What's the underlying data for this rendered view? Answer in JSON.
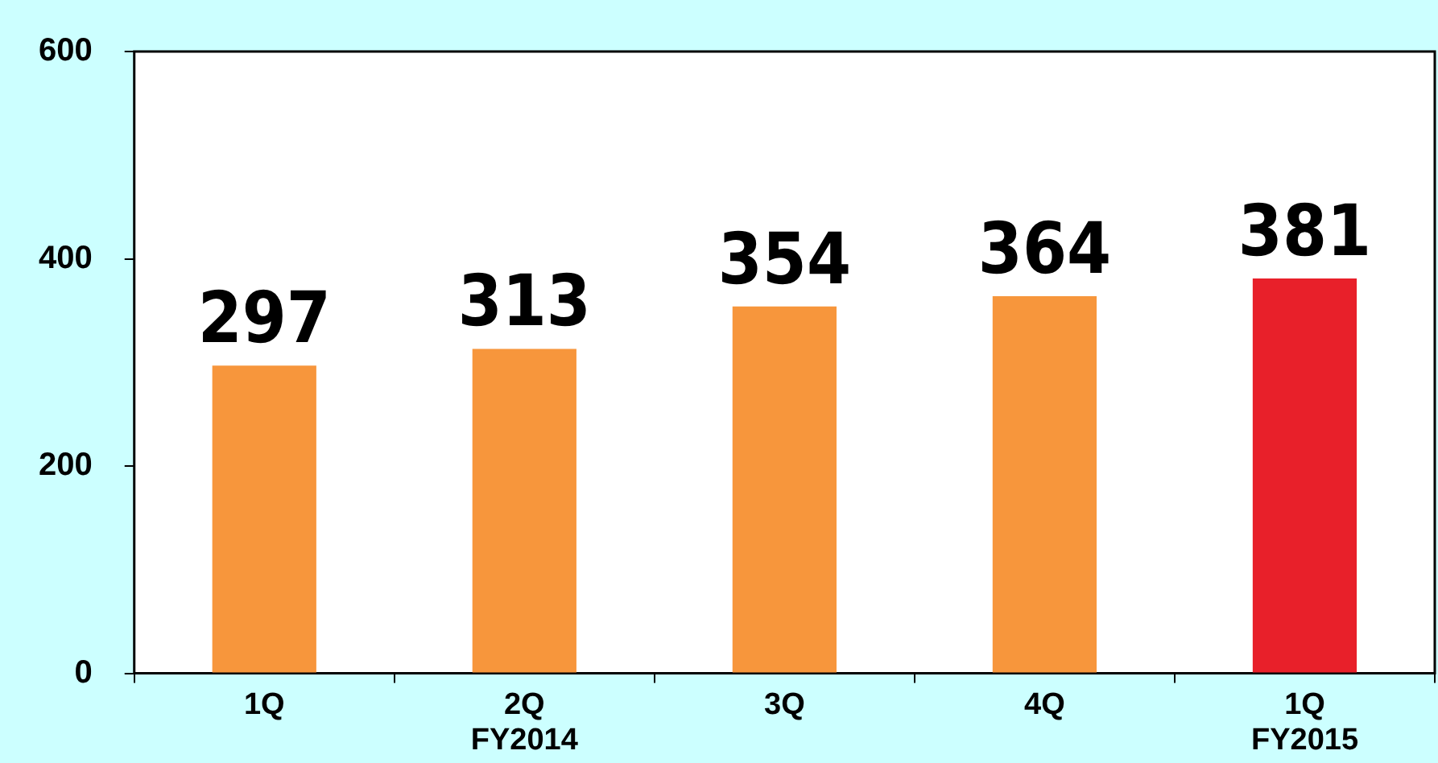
{
  "chart_data": {
    "type": "bar",
    "categories": [
      "1Q",
      "2Q\nFY2014",
      "3Q",
      "4Q",
      "1Q\nFY2015"
    ],
    "values": [
      297,
      313,
      354,
      364,
      381
    ],
    "colors": [
      "#f7963c",
      "#f7963c",
      "#f7963c",
      "#f7963c",
      "#e8202a"
    ],
    "ylim": [
      0,
      600
    ],
    "yticks": [
      0,
      200,
      400,
      600
    ],
    "data_labels": true,
    "grid": false,
    "legend": false
  }
}
